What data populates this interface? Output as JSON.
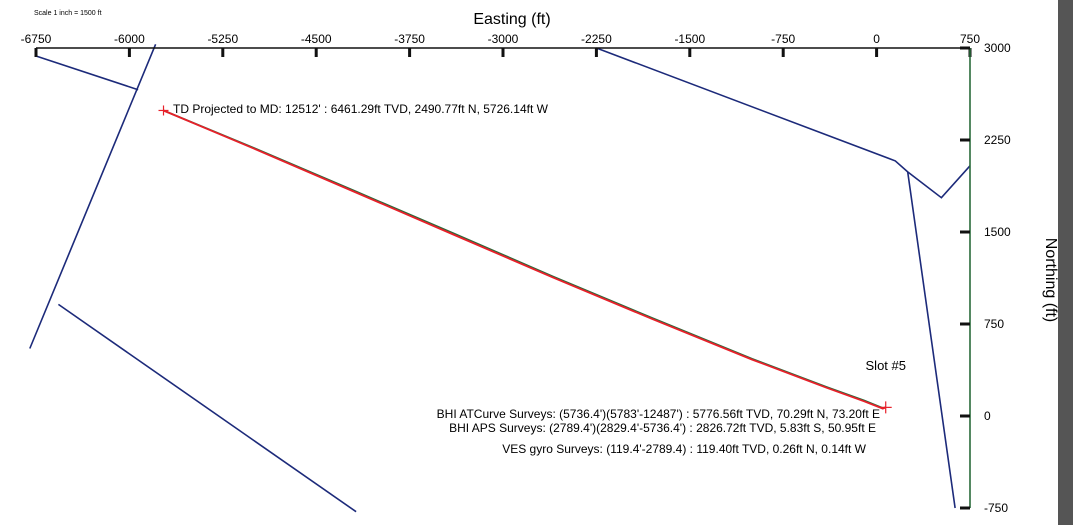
{
  "chart_data": {
    "type": "line",
    "xlabel": "Easting (ft)",
    "ylabel": "Northing (ft)",
    "scale_note": "Scale 1 inch = 1500 ft",
    "xlim": [
      -6750,
      750
    ],
    "ylim": [
      -750,
      3000
    ],
    "x_ticks": [
      -6750,
      -6000,
      -5250,
      -4500,
      -3750,
      -3000,
      -2250,
      -1500,
      -750,
      0,
      750
    ],
    "y_ticks": [
      3000,
      2250,
      1500,
      750,
      0,
      -750
    ],
    "grid": false,
    "series": [
      {
        "color": "#e8202a",
        "x": [
          -5726.14,
          -5000,
          -4200,
          -3400,
          -2600,
          -1800,
          -1000,
          -400,
          -100,
          50,
          73.2
        ],
        "y": [
          2490.77,
          2180,
          1830,
          1480,
          1130,
          790,
          460,
          230,
          120,
          60,
          70.29
        ]
      },
      {
        "color": "#2a6a3a",
        "x": [
          -5726.14,
          -5000,
          -4200,
          -3400,
          -2600,
          -1800,
          -1000,
          -400,
          -100,
          50,
          73.2
        ],
        "y": [
          2490.77,
          2185,
          1838,
          1490,
          1138,
          798,
          466,
          236,
          126,
          64,
          70.29
        ]
      }
    ],
    "boundary_segments": [
      {
        "x": [
          -6750,
          -5930
        ],
        "y": [
          2935,
          2660
        ]
      },
      {
        "x": [
          -5790,
          -6800
        ],
        "y": [
          3030,
          550
        ]
      },
      {
        "x": [
          -6570,
          -4180
        ],
        "y": [
          910,
          -780
        ]
      },
      {
        "x": [
          -2250,
          150,
          250,
          520,
          750
        ],
        "y": [
          3000,
          2080,
          1990,
          1780,
          2040
        ]
      },
      {
        "x": [
          250,
          630
        ],
        "y": [
          1990,
          -750
        ]
      }
    ],
    "annotations": {
      "td": "TD Projected to MD: 12512' : 6461.29ft TVD, 2490.77ft N, 5726.14ft W",
      "slot": "Slot #5",
      "atcurve": "BHI ATCurve Surveys: (5736.4')(5783'-12487') : 5776.56ft TVD, 70.29ft N, 73.20ft E",
      "aps": "BHI APS Surveys: (2789.4')(2829.4'-5736.4') : 2826.72ft TVD, 5.83ft S, 50.95ft E",
      "ves": "VES gyro Surveys: (119.4'-2789.4) : 119.40ft TVD, 0.26ft N, 0.14ft W"
    }
  }
}
